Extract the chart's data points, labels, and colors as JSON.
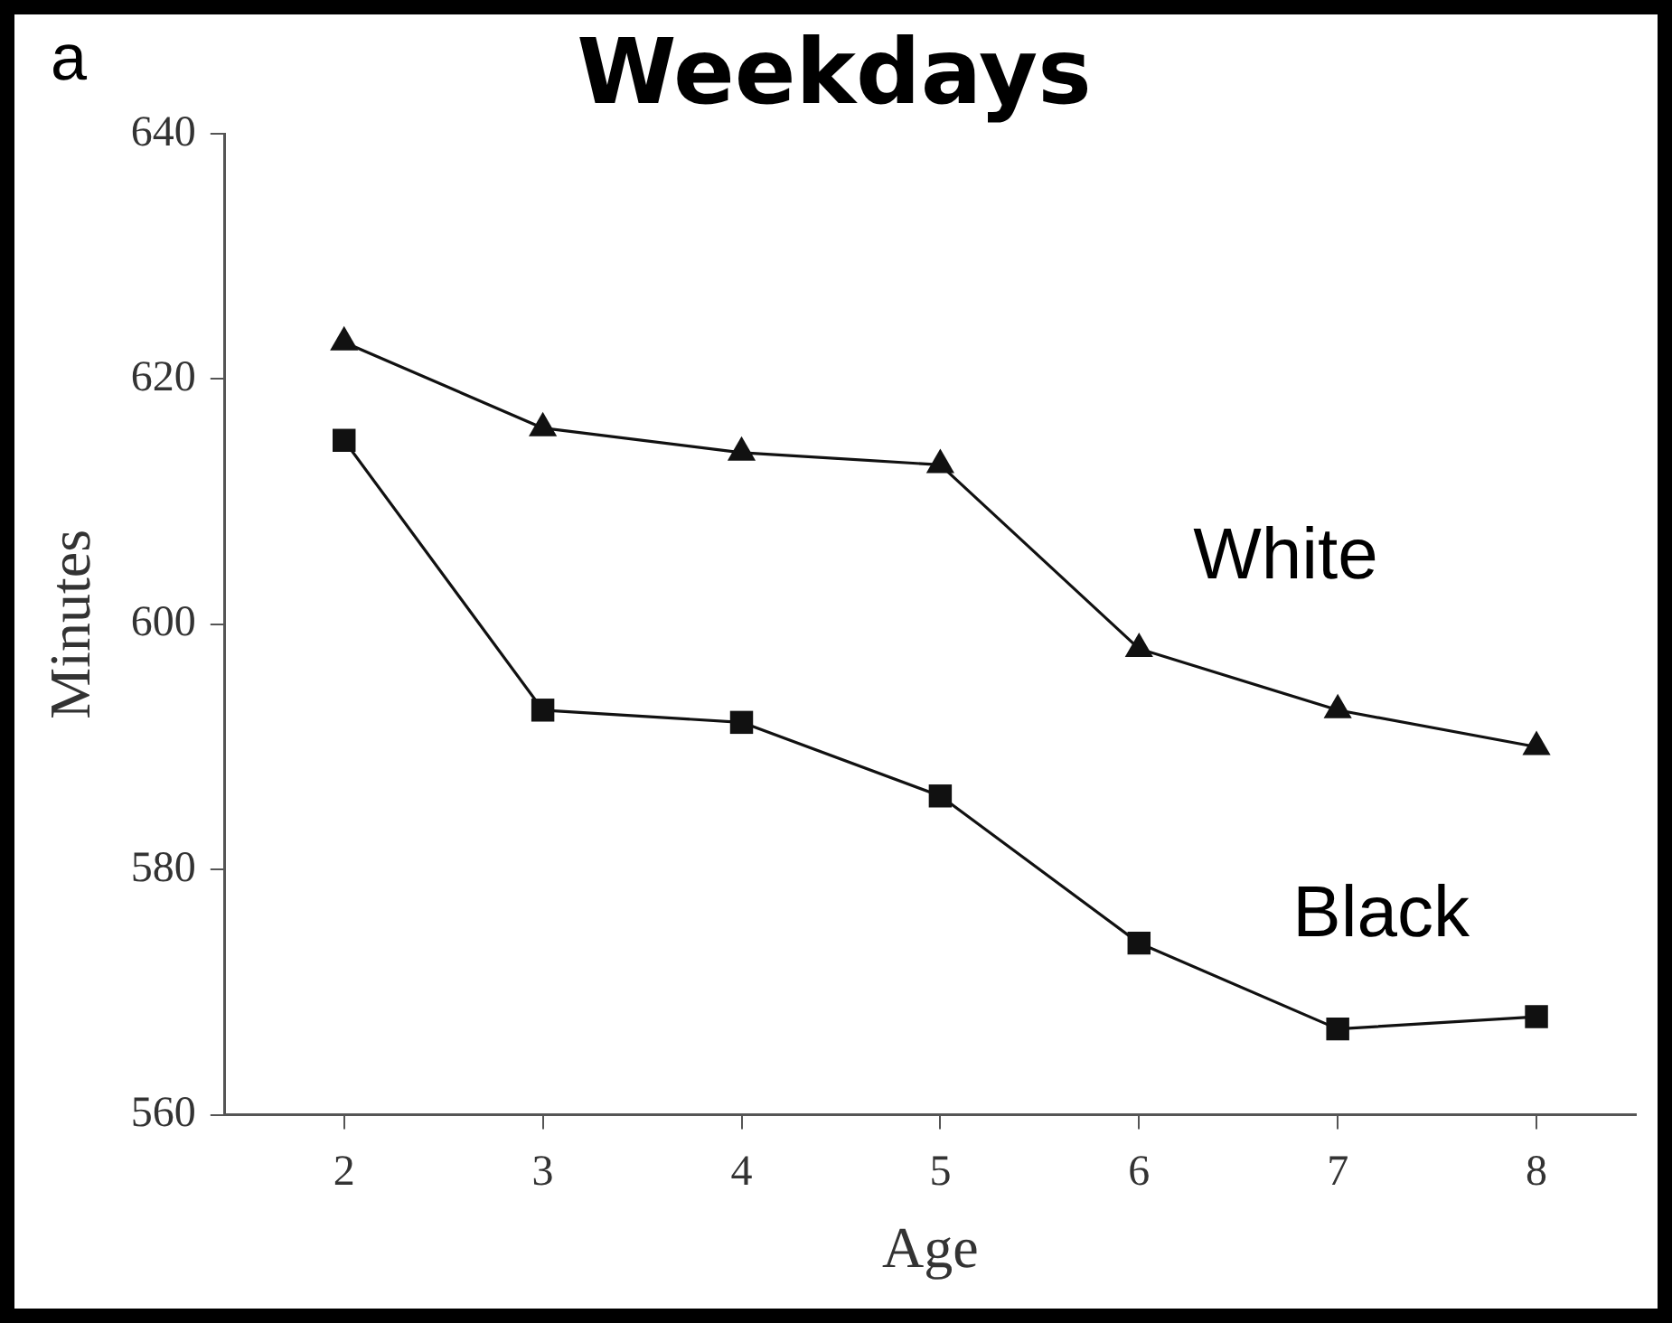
{
  "chart_data": {
    "type": "line",
    "title": "Weekdays",
    "xlabel": "Age",
    "ylabel": "Minutes",
    "annotations": [
      "a"
    ],
    "x": [
      2,
      3,
      4,
      5,
      6,
      7,
      8
    ],
    "series": [
      {
        "name": "White",
        "color": "#111111",
        "marker": "triangle",
        "values": [
          623,
          616,
          614,
          613,
          598,
          593,
          590
        ]
      },
      {
        "name": "Black",
        "color": "#111111",
        "marker": "square",
        "values": [
          615,
          593,
          592,
          586,
          574,
          567,
          568
        ]
      }
    ],
    "xlim": [
      1.4,
      8.5
    ],
    "xticks": [
      2,
      3,
      4,
      5,
      6,
      7,
      8
    ],
    "ylim": [
      560,
      640
    ],
    "yticks": [
      560,
      580,
      600,
      620,
      640
    ],
    "grid": false,
    "legend": false,
    "line_style": "solid"
  }
}
